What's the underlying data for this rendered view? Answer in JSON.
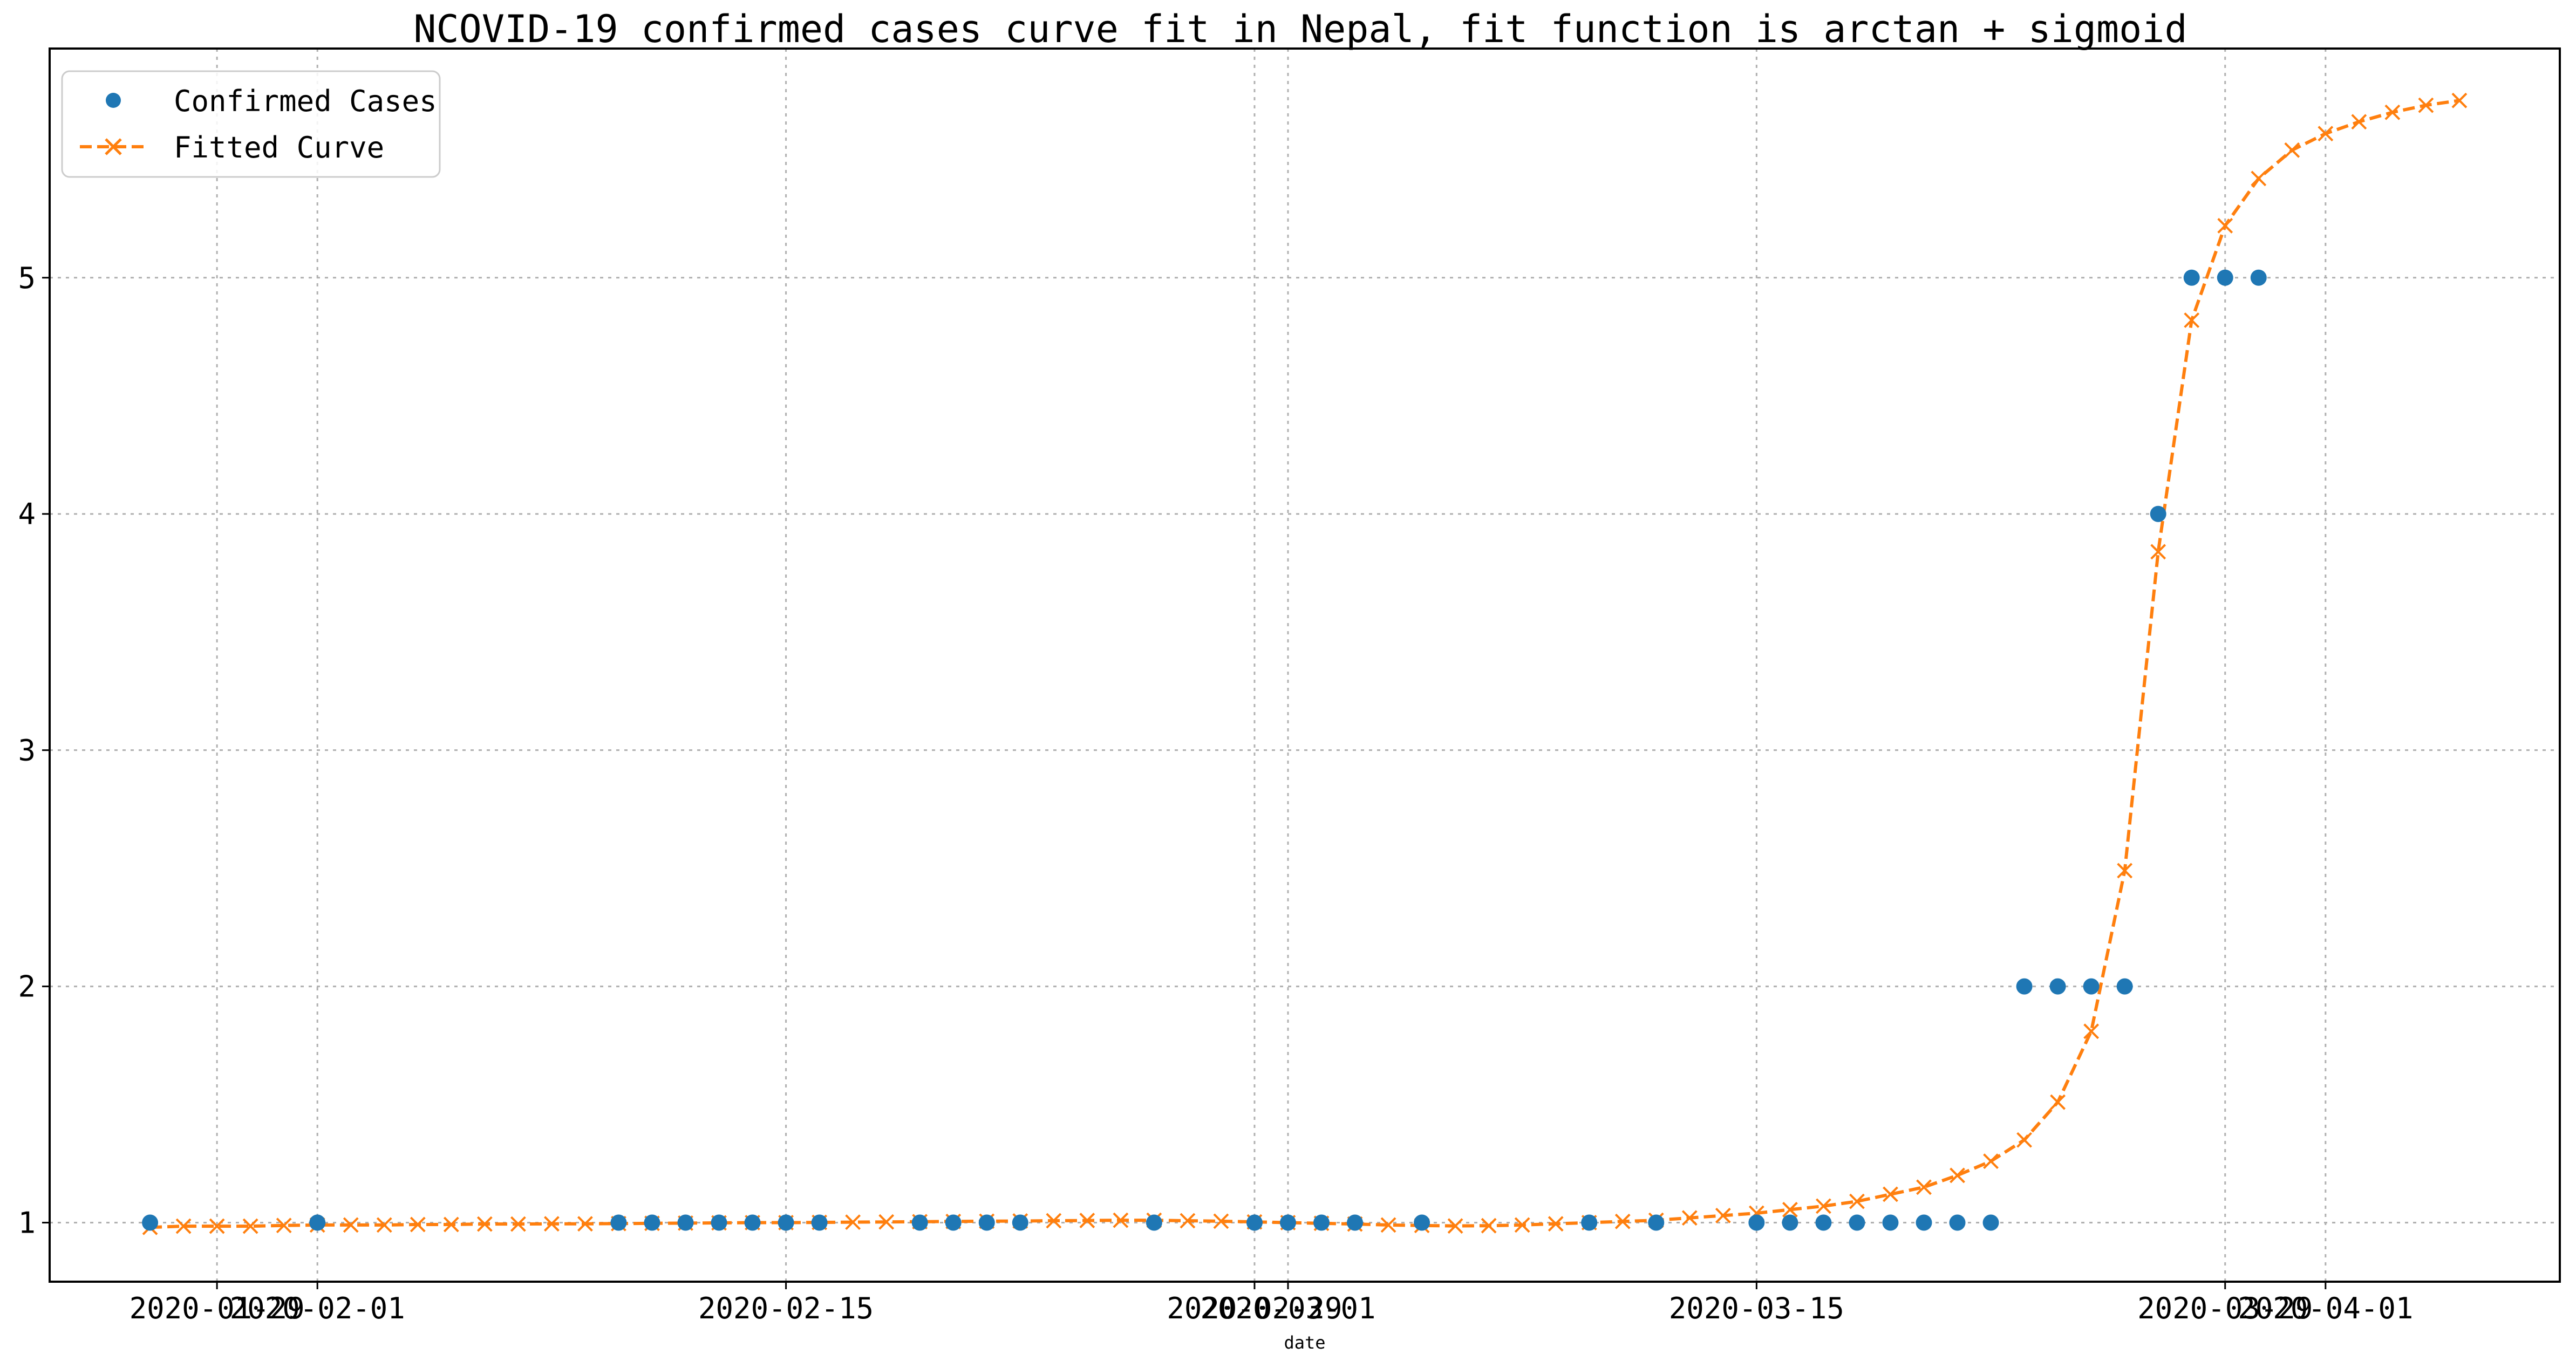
{
  "chart_data": {
    "type": "line",
    "title": "NCOVID-19 confirmed cases curve fit in Nepal, fit function is arctan + sigmoid",
    "xlabel": "date",
    "ylabel": "",
    "x_ticks": [
      {
        "date": "2020-01-29",
        "label": "2020-01-29"
      },
      {
        "date": "2020-02-01",
        "label": "2020-02-01"
      },
      {
        "date": "2020-02-15",
        "label": "2020-02-15"
      },
      {
        "date": "2020-02-29",
        "label": "2020-02-29"
      },
      {
        "date": "2020-03-01",
        "label": "2020-03-01"
      },
      {
        "date": "2020-03-15",
        "label": "2020-03-15"
      },
      {
        "date": "2020-03-29",
        "label": "2020-03-29"
      },
      {
        "date": "2020-04-01",
        "label": "2020-04-01"
      }
    ],
    "xlim": [
      "2020-01-24",
      "2020-04-08"
    ],
    "ylim": [
      0.75,
      5.97
    ],
    "y_ticks": [
      1,
      2,
      3,
      4,
      5
    ],
    "grid": true,
    "legend_position": "top-left",
    "series": [
      {
        "name": "Confirmed Cases",
        "style": "markers",
        "marker": "circle",
        "color": "#1f77b4",
        "points": [
          {
            "x": "2020-01-27",
            "y": 1
          },
          {
            "x": "2020-02-01",
            "y": 1
          },
          {
            "x": "2020-02-10",
            "y": 1
          },
          {
            "x": "2020-02-11",
            "y": 1
          },
          {
            "x": "2020-02-12",
            "y": 1
          },
          {
            "x": "2020-02-13",
            "y": 1
          },
          {
            "x": "2020-02-14",
            "y": 1
          },
          {
            "x": "2020-02-15",
            "y": 1
          },
          {
            "x": "2020-02-16",
            "y": 1
          },
          {
            "x": "2020-02-19",
            "y": 1
          },
          {
            "x": "2020-02-20",
            "y": 1
          },
          {
            "x": "2020-02-21",
            "y": 1
          },
          {
            "x": "2020-02-22",
            "y": 1
          },
          {
            "x": "2020-02-26",
            "y": 1
          },
          {
            "x": "2020-02-29",
            "y": 1
          },
          {
            "x": "2020-03-01",
            "y": 1
          },
          {
            "x": "2020-03-02",
            "y": 1
          },
          {
            "x": "2020-03-03",
            "y": 1
          },
          {
            "x": "2020-03-05",
            "y": 1
          },
          {
            "x": "2020-03-10",
            "y": 1
          },
          {
            "x": "2020-03-12",
            "y": 1
          },
          {
            "x": "2020-03-15",
            "y": 1
          },
          {
            "x": "2020-03-16",
            "y": 1
          },
          {
            "x": "2020-03-17",
            "y": 1
          },
          {
            "x": "2020-03-18",
            "y": 1
          },
          {
            "x": "2020-03-19",
            "y": 1
          },
          {
            "x": "2020-03-20",
            "y": 1
          },
          {
            "x": "2020-03-21",
            "y": 1
          },
          {
            "x": "2020-03-22",
            "y": 1
          },
          {
            "x": "2020-03-23",
            "y": 2
          },
          {
            "x": "2020-03-24",
            "y": 2
          },
          {
            "x": "2020-03-25",
            "y": 2
          },
          {
            "x": "2020-03-26",
            "y": 2
          },
          {
            "x": "2020-03-27",
            "y": 4
          },
          {
            "x": "2020-03-28",
            "y": 5
          },
          {
            "x": "2020-03-29",
            "y": 5
          },
          {
            "x": "2020-03-30",
            "y": 5
          }
        ]
      },
      {
        "name": "Fitted Curve",
        "style": "dashed-line-with-x-markers",
        "marker": "x",
        "color": "#ff7f0e",
        "points": [
          {
            "x": "2020-01-27",
            "y": 0.98
          },
          {
            "x": "2020-01-28",
            "y": 0.985
          },
          {
            "x": "2020-01-29",
            "y": 0.985
          },
          {
            "x": "2020-01-30",
            "y": 0.985
          },
          {
            "x": "2020-01-31",
            "y": 0.988
          },
          {
            "x": "2020-02-01",
            "y": 0.99
          },
          {
            "x": "2020-02-02",
            "y": 0.99
          },
          {
            "x": "2020-02-03",
            "y": 0.99
          },
          {
            "x": "2020-02-04",
            "y": 0.992
          },
          {
            "x": "2020-02-05",
            "y": 0.992
          },
          {
            "x": "2020-02-06",
            "y": 0.994
          },
          {
            "x": "2020-02-07",
            "y": 0.994
          },
          {
            "x": "2020-02-08",
            "y": 0.995
          },
          {
            "x": "2020-02-09",
            "y": 0.995
          },
          {
            "x": "2020-02-10",
            "y": 0.996
          },
          {
            "x": "2020-02-11",
            "y": 0.997
          },
          {
            "x": "2020-02-12",
            "y": 0.998
          },
          {
            "x": "2020-02-13",
            "y": 0.999
          },
          {
            "x": "2020-02-14",
            "y": 1.0
          },
          {
            "x": "2020-02-15",
            "y": 1.0
          },
          {
            "x": "2020-02-16",
            "y": 1.001
          },
          {
            "x": "2020-02-17",
            "y": 1.002
          },
          {
            "x": "2020-02-18",
            "y": 1.003
          },
          {
            "x": "2020-02-19",
            "y": 1.004
          },
          {
            "x": "2020-02-20",
            "y": 1.005
          },
          {
            "x": "2020-02-21",
            "y": 1.006
          },
          {
            "x": "2020-02-22",
            "y": 1.007
          },
          {
            "x": "2020-02-23",
            "y": 1.008
          },
          {
            "x": "2020-02-24",
            "y": 1.009
          },
          {
            "x": "2020-02-25",
            "y": 1.01
          },
          {
            "x": "2020-02-26",
            "y": 1.01
          },
          {
            "x": "2020-02-27",
            "y": 1.008
          },
          {
            "x": "2020-02-28",
            "y": 1.006
          },
          {
            "x": "2020-02-29",
            "y": 1.003
          },
          {
            "x": "2020-03-01",
            "y": 1.0
          },
          {
            "x": "2020-03-02",
            "y": 0.997
          },
          {
            "x": "2020-03-03",
            "y": 0.994
          },
          {
            "x": "2020-03-04",
            "y": 0.99
          },
          {
            "x": "2020-03-05",
            "y": 0.988
          },
          {
            "x": "2020-03-06",
            "y": 0.986
          },
          {
            "x": "2020-03-07",
            "y": 0.987
          },
          {
            "x": "2020-03-08",
            "y": 0.99
          },
          {
            "x": "2020-03-09",
            "y": 0.995
          },
          {
            "x": "2020-03-10",
            "y": 1.0
          },
          {
            "x": "2020-03-11",
            "y": 1.005
          },
          {
            "x": "2020-03-12",
            "y": 1.01
          },
          {
            "x": "2020-03-13",
            "y": 1.02
          },
          {
            "x": "2020-03-14",
            "y": 1.03
          },
          {
            "x": "2020-03-15",
            "y": 1.04
          },
          {
            "x": "2020-03-16",
            "y": 1.055
          },
          {
            "x": "2020-03-17",
            "y": 1.07
          },
          {
            "x": "2020-03-18",
            "y": 1.09
          },
          {
            "x": "2020-03-19",
            "y": 1.12
          },
          {
            "x": "2020-03-20",
            "y": 1.15
          },
          {
            "x": "2020-03-21",
            "y": 1.2
          },
          {
            "x": "2020-03-22",
            "y": 1.26
          },
          {
            "x": "2020-03-23",
            "y": 1.35
          },
          {
            "x": "2020-03-24",
            "y": 1.51
          },
          {
            "x": "2020-03-25",
            "y": 1.81
          },
          {
            "x": "2020-03-26",
            "y": 2.49
          },
          {
            "x": "2020-03-27",
            "y": 3.84
          },
          {
            "x": "2020-03-28",
            "y": 4.82
          },
          {
            "x": "2020-03-29",
            "y": 5.22
          },
          {
            "x": "2020-03-30",
            "y": 5.42
          },
          {
            "x": "2020-03-31",
            "y": 5.54
          },
          {
            "x": "2020-04-01",
            "y": 5.61
          },
          {
            "x": "2020-04-02",
            "y": 5.66
          },
          {
            "x": "2020-04-03",
            "y": 5.7
          },
          {
            "x": "2020-04-04",
            "y": 5.73
          },
          {
            "x": "2020-04-05",
            "y": 5.75
          }
        ]
      }
    ]
  }
}
